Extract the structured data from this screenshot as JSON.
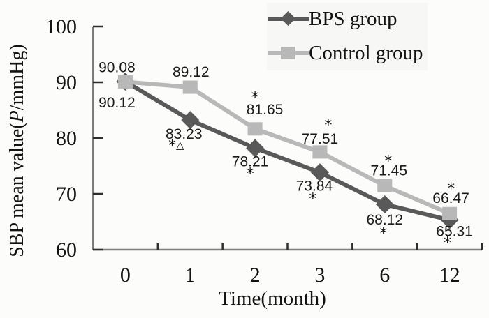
{
  "chart_data": {
    "type": "line",
    "xlabel": "Time(month)",
    "ylabel": "SBP mean value(P/mmHg)",
    "ylabel_parts": {
      "pre": "SBP mean value(",
      "italic": "P",
      "post": "/mmHg)"
    },
    "categories": [
      "0",
      "1",
      "2",
      "3",
      "6",
      "12"
    ],
    "y_ticks": [
      100,
      90,
      80,
      70,
      60
    ],
    "ylim": [
      60,
      100
    ],
    "grid": false,
    "legend_position": "top-right",
    "colors": {
      "bps_series": "#595959",
      "control_series": "#b8b8b8",
      "axis": "#7d7d7d",
      "tick": "#2e2e2e",
      "label_text": "#1a1a1a"
    },
    "series": [
      {
        "name": "BPS group",
        "marker": "diamond",
        "color": "#595959",
        "values": [
          90.12,
          83.23,
          78.21,
          73.84,
          68.12,
          65.31
        ],
        "labels": [
          "90.12",
          "83.23",
          "78.21",
          "73.84",
          "68.12",
          "65.31"
        ],
        "annotations": [
          "",
          "*△",
          "*",
          "*",
          "*",
          "*"
        ],
        "label_offsets": [
          [
            -12,
            30
          ],
          [
            -9,
            20
          ],
          [
            -7,
            19
          ],
          [
            -8,
            19
          ],
          [
            0,
            22
          ],
          [
            7,
            16
          ]
        ],
        "annotation_offsets": [
          null,
          [
            -20,
            35
          ],
          [
            -7,
            35
          ],
          [
            -10,
            36
          ],
          [
            -2,
            40
          ],
          [
            -3,
            31
          ]
        ]
      },
      {
        "name": "Control group",
        "marker": "square",
        "color": "#b8b8b8",
        "values": [
          90.08,
          89.12,
          81.65,
          77.51,
          71.45,
          66.47
        ],
        "labels": [
          "90.08",
          "89.12",
          "81.65",
          "77.51",
          "71.45",
          "66.47"
        ],
        "annotations": [
          "",
          "",
          "*",
          "*",
          "*",
          "*"
        ],
        "label_offsets": [
          [
            -12,
            -21
          ],
          [
            1,
            -22
          ],
          [
            14,
            -28
          ],
          [
            0,
            -19
          ],
          [
            6,
            -22
          ],
          [
            2,
            -22
          ]
        ],
        "annotation_offsets": [
          null,
          null,
          [
            0,
            -47
          ],
          [
            12,
            -40
          ],
          [
            5,
            -37
          ],
          [
            2,
            -37
          ]
        ]
      }
    ]
  }
}
